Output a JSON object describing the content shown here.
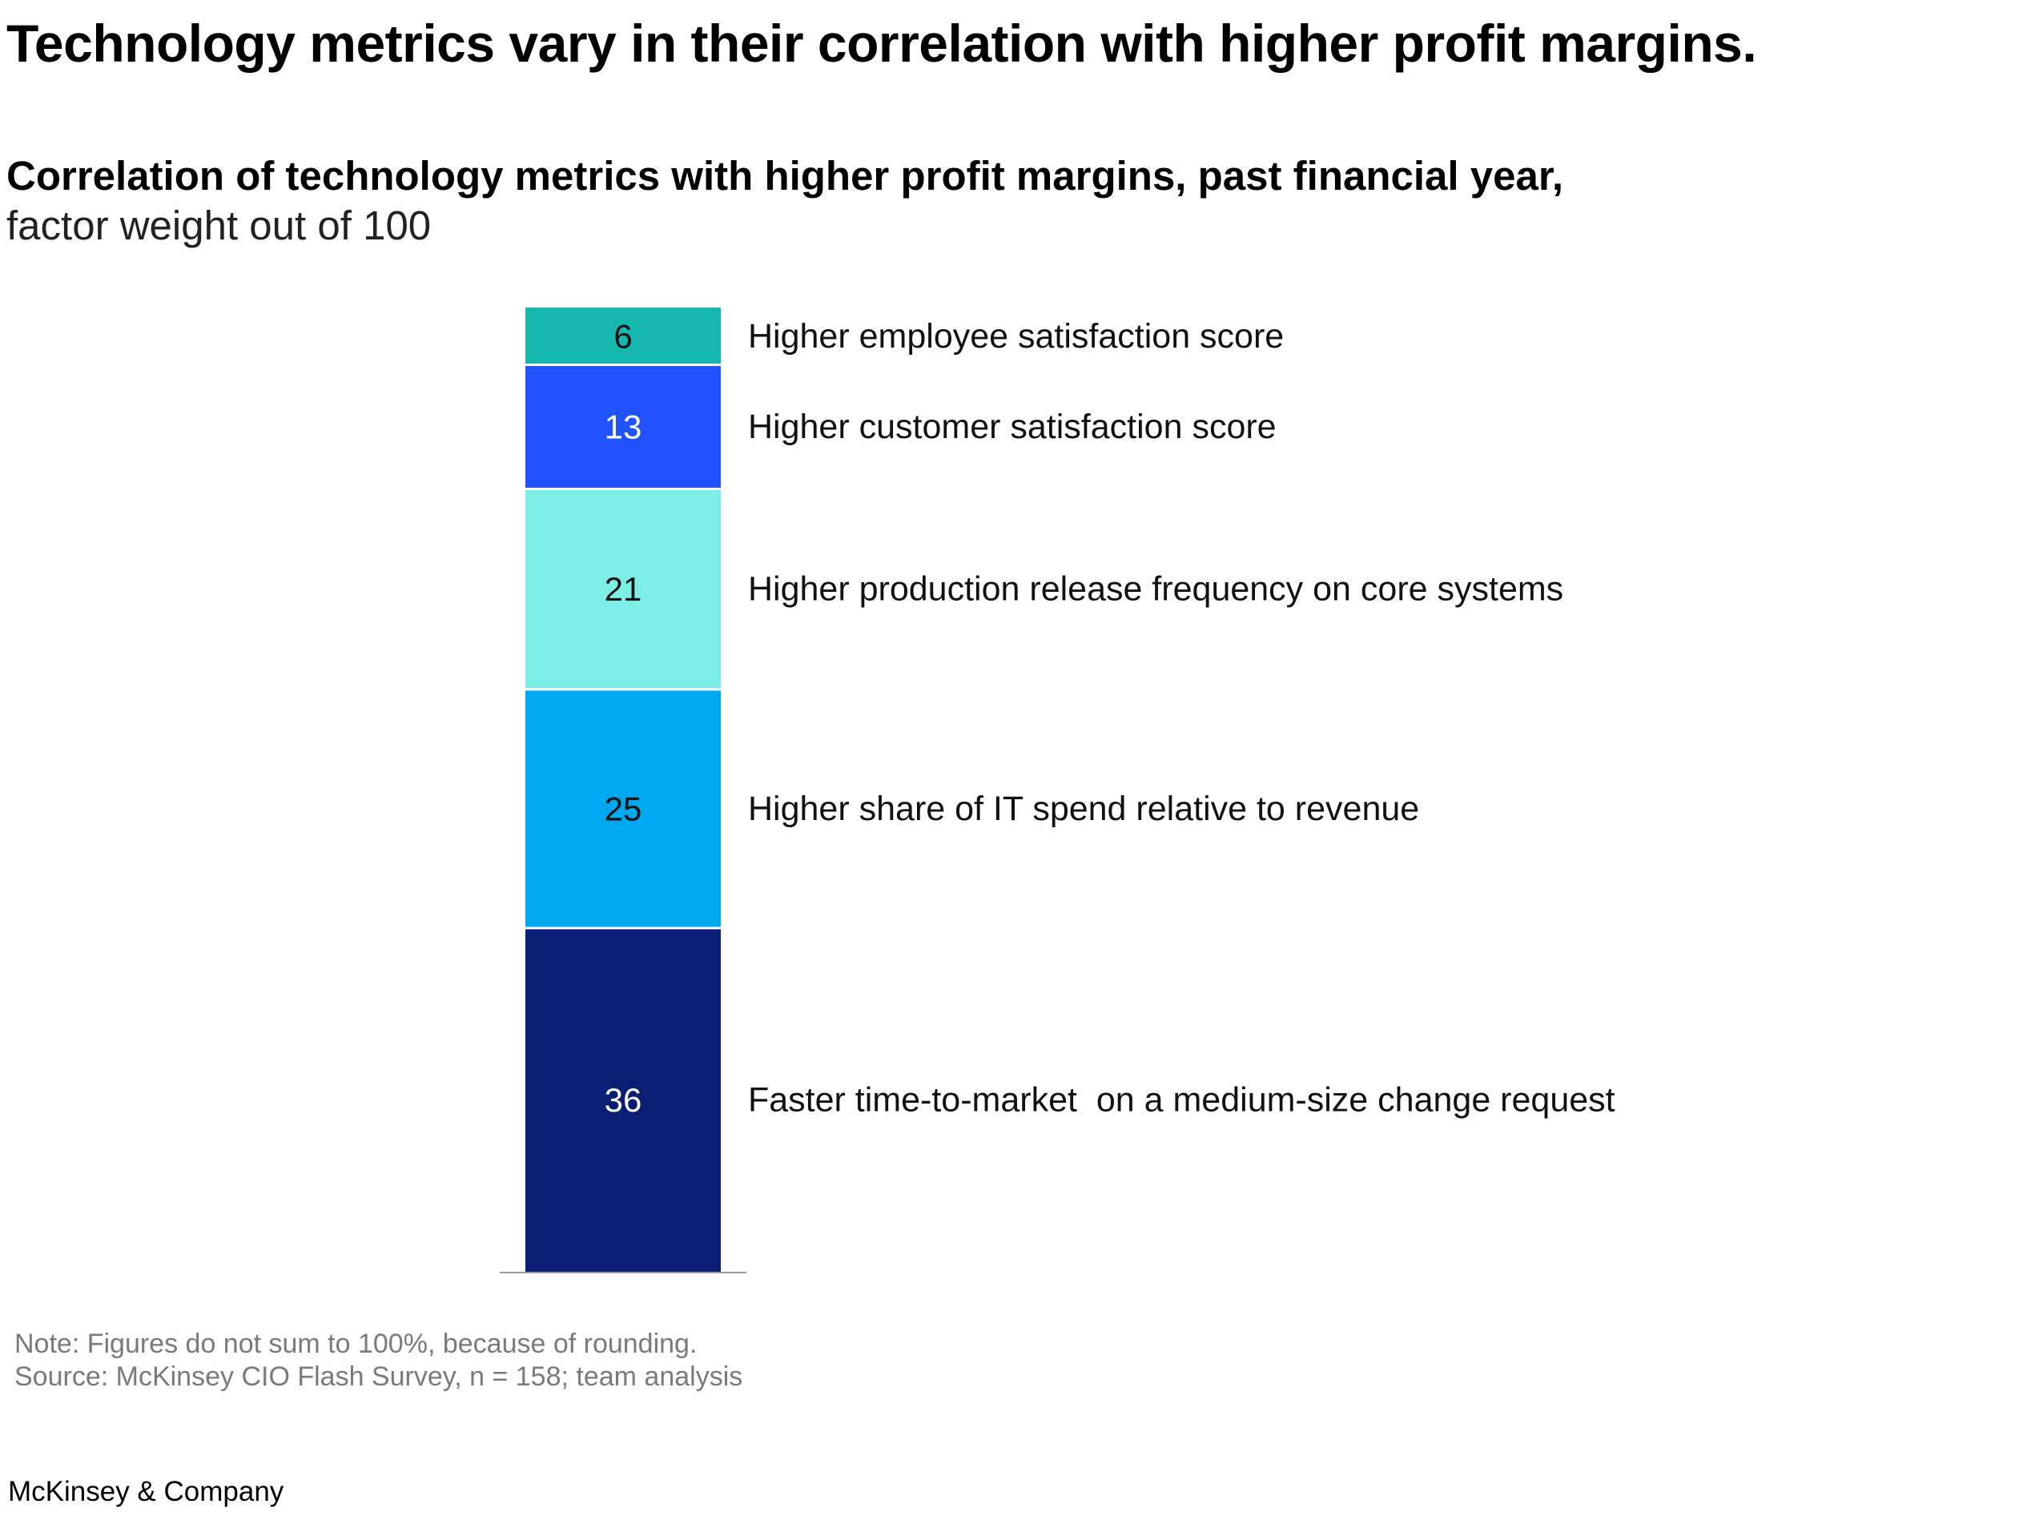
{
  "headline": "Technology metrics vary in their correlation with higher profit margins.",
  "subtitle": "Correlation of technology metrics with higher profit margins, past financial year,",
  "unit_label": "factor weight out of 100",
  "chart_data": {
    "type": "bar",
    "stacked": true,
    "orientation": "vertical",
    "title": "Correlation of technology metrics with higher profit margins, past financial year",
    "ylabel": "factor weight out of 100",
    "ylim": [
      0,
      101
    ],
    "series": [
      {
        "name": "Faster time-to-market  on a medium-size change request",
        "values": [
          36
        ],
        "color": "#0a1e73",
        "label_color": "#ffffff"
      },
      {
        "name": "Higher share of IT spend relative to revenue",
        "values": [
          25
        ],
        "color": "#00a8f0",
        "label_color": "#111111"
      },
      {
        "name": "Higher production release frequency on core systems",
        "values": [
          21
        ],
        "color": "#7ceee5",
        "label_color": "#111111"
      },
      {
        "name": "Higher customer satisfaction score",
        "values": [
          13
        ],
        "color": "#2152ff",
        "label_color": "#ffffff"
      },
      {
        "name": "Higher employee satisfaction score",
        "values": [
          6
        ],
        "color": "#14b8ae",
        "label_color": "#111111"
      }
    ]
  },
  "notes": {
    "note": "Note: Figures do not sum to 100%, because of rounding.",
    "source": "Source: McKinsey CIO Flash Survey, n = 158; team analysis"
  },
  "brand": "McKinsey & Company"
}
